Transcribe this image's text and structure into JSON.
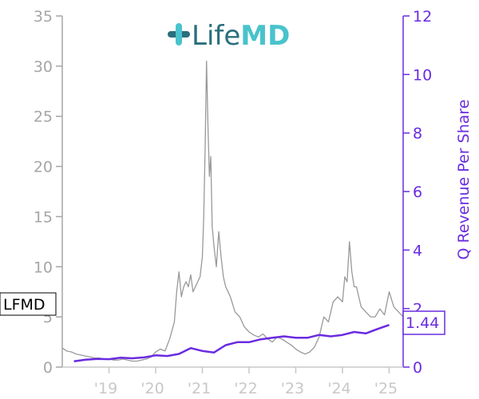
{
  "colors": {
    "price": "#999999",
    "revenue": "#6a2be0",
    "left_axis": "#a6a6a6",
    "x_ticks": "#c8c8c8",
    "logo_dark": "#2a6f7d",
    "logo_light": "#49c3cc"
  },
  "logo": {
    "word_life": "Life",
    "word_md": "MD",
    "icon": "plus-cross-icon"
  },
  "ticker": "LFMD",
  "last_value_label": "1.44",
  "chart_data": {
    "type": "line",
    "title": "",
    "xlabel": "",
    "ylabel_left": "",
    "ylabel_right": "Q Revenue Per Share",
    "x_range": [
      2018.0,
      2025.3
    ],
    "ylim_left": [
      0,
      35
    ],
    "ylim_right": [
      0,
      12
    ],
    "yticks_left": [
      0,
      5,
      10,
      15,
      20,
      25,
      30,
      35
    ],
    "yticks_right": [
      0,
      2,
      4,
      6,
      8,
      10,
      12
    ],
    "xticks": [
      {
        "label": "'19",
        "x": 2019.0
      },
      {
        "label": "'20",
        "x": 2020.0
      },
      {
        "label": "'21",
        "x": 2021.0
      },
      {
        "label": "'22",
        "x": 2022.0
      },
      {
        "label": "'23",
        "x": 2023.0
      },
      {
        "label": "'24",
        "x": 2024.0
      },
      {
        "label": "'25",
        "x": 2025.0
      }
    ],
    "grid": false,
    "legend": "none",
    "series": [
      {
        "name": "LFMD",
        "axis": "left",
        "x": [
          2018.0,
          2018.1,
          2018.2,
          2018.3,
          2018.4,
          2018.5,
          2018.6,
          2018.7,
          2018.8,
          2018.9,
          2019.0,
          2019.1,
          2019.2,
          2019.3,
          2019.4,
          2019.5,
          2019.6,
          2019.7,
          2019.8,
          2019.9,
          2020.0,
          2020.1,
          2020.2,
          2020.3,
          2020.4,
          2020.45,
          2020.5,
          2020.55,
          2020.6,
          2020.65,
          2020.7,
          2020.75,
          2020.8,
          2020.85,
          2020.9,
          2020.95,
          2021.0,
          2021.03,
          2021.06,
          2021.09,
          2021.12,
          2021.15,
          2021.18,
          2021.21,
          2021.25,
          2021.3,
          2021.35,
          2021.4,
          2021.45,
          2021.5,
          2021.55,
          2021.6,
          2021.7,
          2021.8,
          2021.9,
          2022.0,
          2022.1,
          2022.2,
          2022.3,
          2022.4,
          2022.5,
          2022.6,
          2022.7,
          2022.8,
          2022.9,
          2023.0,
          2023.1,
          2023.2,
          2023.3,
          2023.4,
          2023.5,
          2023.6,
          2023.7,
          2023.8,
          2023.9,
          2024.0,
          2024.05,
          2024.1,
          2024.15,
          2024.2,
          2024.25,
          2024.3,
          2024.35,
          2024.4,
          2024.5,
          2024.6,
          2024.7,
          2024.8,
          2024.9,
          2025.0,
          2025.1,
          2025.2,
          2025.3
        ],
        "y": [
          1.9,
          1.6,
          1.5,
          1.3,
          1.2,
          1.1,
          1.0,
          0.9,
          0.9,
          0.8,
          0.8,
          0.7,
          0.7,
          0.8,
          0.7,
          0.6,
          0.6,
          0.7,
          0.8,
          1.0,
          1.5,
          1.8,
          1.6,
          2.8,
          4.5,
          7.5,
          9.5,
          7.0,
          8.0,
          8.5,
          8.0,
          9.2,
          7.5,
          8.0,
          8.5,
          9.0,
          11.0,
          15.0,
          22.0,
          30.5,
          24.0,
          19.0,
          21.0,
          14.0,
          12.0,
          10.0,
          13.5,
          11.0,
          9.0,
          8.0,
          7.5,
          7.0,
          5.5,
          5.0,
          4.0,
          3.5,
          3.2,
          3.0,
          3.3,
          2.8,
          2.5,
          3.0,
          2.8,
          2.5,
          2.2,
          1.8,
          1.5,
          1.3,
          1.5,
          2.0,
          3.0,
          5.0,
          4.5,
          6.5,
          7.0,
          6.5,
          9.0,
          8.5,
          12.5,
          9.5,
          8.0,
          8.0,
          7.0,
          6.0,
          5.5,
          5.0,
          5.0,
          5.8,
          5.2,
          7.5,
          6.0,
          5.5,
          5.0
        ]
      },
      {
        "name": "",
        "axis": "right",
        "x": [
          2018.25,
          2018.5,
          2018.75,
          2019.0,
          2019.25,
          2019.5,
          2019.75,
          2020.0,
          2020.25,
          2020.5,
          2020.75,
          2021.0,
          2021.25,
          2021.5,
          2021.75,
          2022.0,
          2022.25,
          2022.5,
          2022.75,
          2023.0,
          2023.25,
          2023.5,
          2023.75,
          2024.0,
          2024.25,
          2024.5,
          2024.75,
          2025.0
        ],
        "y": [
          0.2,
          0.25,
          0.28,
          0.27,
          0.32,
          0.3,
          0.33,
          0.4,
          0.38,
          0.45,
          0.65,
          0.55,
          0.5,
          0.75,
          0.85,
          0.85,
          0.95,
          1.0,
          1.05,
          1.0,
          1.0,
          1.1,
          1.05,
          1.1,
          1.2,
          1.15,
          1.3,
          1.44
        ]
      }
    ]
  }
}
